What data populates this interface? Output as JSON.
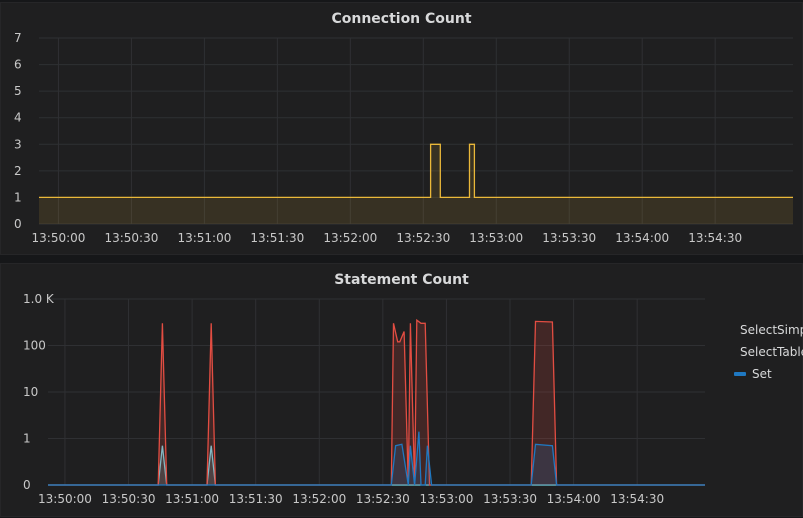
{
  "chart_data": [
    {
      "type": "line",
      "title": "Connection Count",
      "x_tick_labels": [
        "13:50:00",
        "13:50:30",
        "13:51:00",
        "13:51:30",
        "13:52:00",
        "13:52:30",
        "13:53:00",
        "13:53:30",
        "13:54:00",
        "13:54:30"
      ],
      "y_tick_labels": [
        "0",
        "1",
        "2",
        "3",
        "4",
        "5",
        "6",
        "7"
      ],
      "ylim": [
        0,
        7
      ],
      "xlim": [
        "13:49:52",
        "13:55:02"
      ],
      "grid": true,
      "legend": "none",
      "series": [
        {
          "color": "#eab839",
          "x": [
            "13:49:52",
            "13:52:33",
            "13:52:33",
            "13:52:37",
            "13:52:37",
            "13:52:49",
            "13:52:49",
            "13:52:51",
            "13:52:51",
            "13:55:02"
          ],
          "y": [
            1,
            1,
            3,
            3,
            1,
            1,
            3,
            3,
            1,
            1
          ]
        }
      ]
    },
    {
      "type": "line",
      "title": "Statement Count",
      "y_scale": "log",
      "x_tick_labels": [
        "13:50:00",
        "13:50:30",
        "13:51:00",
        "13:51:30",
        "13:52:00",
        "13:52:30",
        "13:53:00",
        "13:53:30",
        "13:54:00",
        "13:54:30"
      ],
      "y_tick_labels": [
        "0",
        "1",
        "10",
        "100",
        "1.0 K"
      ],
      "ylim": [
        0,
        1000
      ],
      "xlim": [
        "13:49:52",
        "13:55:02"
      ],
      "grid": true,
      "legend": "right",
      "series": [
        {
          "name": "SelectSimple",
          "color": "#6ed0e0",
          "x": [
            "13:49:52",
            "13:50:44",
            "13:50:46",
            "13:50:48",
            "13:51:07",
            "13:51:09",
            "13:51:11",
            "13:55:02"
          ],
          "y": [
            0,
            0,
            0.7,
            0,
            0,
            0.7,
            0,
            0
          ]
        },
        {
          "name": "SelectTable",
          "color": "#e24d42",
          "x": [
            "13:49:52",
            "13:50:44",
            "13:50:46",
            "13:50:48",
            "13:51:07",
            "13:51:09",
            "13:51:11",
            "13:52:34",
            "13:52:35",
            "13:52:37",
            "13:52:38",
            "13:52:40",
            "13:52:42",
            "13:52:43",
            "13:52:45",
            "13:52:46",
            "13:52:48",
            "13:52:50",
            "13:52:52",
            "13:52:54",
            "13:53:40",
            "13:53:42",
            "13:53:50",
            "13:53:52",
            "13:55:02"
          ],
          "y": [
            0,
            0,
            300,
            0,
            0,
            300,
            0,
            0,
            300,
            120,
            120,
            200,
            0,
            300,
            0,
            350,
            300,
            300,
            0,
            0,
            0,
            330,
            320,
            0,
            0
          ]
        },
        {
          "name": "Set",
          "color": "#1f78c1",
          "x": [
            "13:49:52",
            "13:52:34",
            "13:52:36",
            "13:52:39",
            "13:52:42",
            "13:52:43",
            "13:52:45",
            "13:52:47",
            "13:52:48",
            "13:52:50",
            "13:52:51",
            "13:52:53",
            "13:53:40",
            "13:53:42",
            "13:53:50",
            "13:53:52",
            "13:55:02"
          ],
          "y": [
            0,
            0,
            0.7,
            0.75,
            0,
            0.7,
            0,
            1.4,
            0,
            0,
            0.7,
            0,
            0,
            0.75,
            0.7,
            0,
            0
          ]
        }
      ]
    }
  ]
}
